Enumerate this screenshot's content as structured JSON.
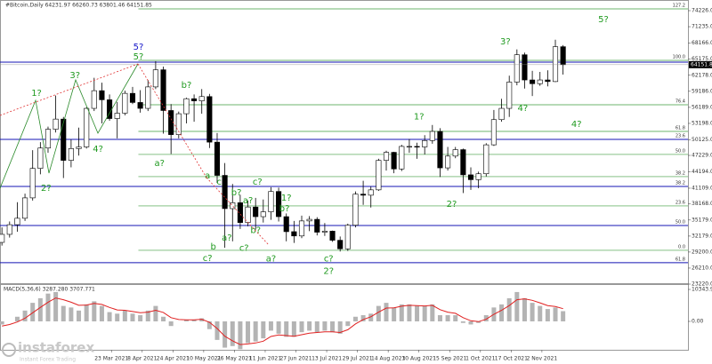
{
  "chart_data": [
    {
      "type": "candlestick",
      "title": "#Bitcoin,Daily  64231.97 66260.73 63801.46 64151.85",
      "x": [
        "2021-01-25",
        "2021-01-29",
        "2021-02-02",
        "2021-02-06",
        "2021-02-10",
        "2021-02-14",
        "2021-02-18",
        "2021-02-22",
        "2021-02-26",
        "2021-03-02",
        "2021-03-06",
        "2021-03-10",
        "2021-03-14",
        "2021-03-18",
        "2021-03-22",
        "2021-03-26",
        "2021-03-30",
        "2021-04-03",
        "2021-04-07",
        "2021-04-11",
        "2021-04-15",
        "2021-04-19",
        "2021-04-23",
        "2021-04-27",
        "2021-05-01",
        "2021-05-05",
        "2021-05-09",
        "2021-05-13",
        "2021-05-17",
        "2021-05-21",
        "2021-05-25",
        "2021-05-29",
        "2021-06-02",
        "2021-06-06",
        "2021-06-10",
        "2021-06-14",
        "2021-06-18",
        "2021-06-22",
        "2021-06-26",
        "2021-06-30",
        "2021-07-04",
        "2021-07-08",
        "2021-07-12",
        "2021-07-16",
        "2021-07-20",
        "2021-07-24",
        "2021-07-28",
        "2021-08-01",
        "2021-08-05",
        "2021-08-09",
        "2021-08-13",
        "2021-08-17",
        "2021-08-21",
        "2021-08-25",
        "2021-08-29",
        "2021-09-02",
        "2021-09-06",
        "2021-09-10",
        "2021-09-14",
        "2021-09-18",
        "2021-09-22",
        "2021-09-26",
        "2021-09-30",
        "2021-10-04",
        "2021-10-08",
        "2021-10-12",
        "2021-10-16",
        "2021-10-20",
        "2021-10-24",
        "2021-10-28",
        "2021-11-01",
        "2021-11-05",
        "2021-11-09",
        "2021-11-13"
      ],
      "open": [
        31000,
        32500,
        34300,
        35500,
        39300,
        44800,
        48600,
        52100,
        54000,
        46300,
        48500,
        48800,
        56000,
        59300,
        57600,
        54100,
        55100,
        58800,
        57100,
        56000,
        60000,
        63200,
        55600,
        51100,
        55000,
        57800,
        57400,
        58200,
        49700,
        43500,
        37300,
        38400,
        34700,
        37600,
        35800,
        36700,
        40500,
        35800,
        33000,
        32200,
        35000,
        35300,
        32900,
        33100,
        31400,
        29800,
        34200,
        40000,
        39800,
        40800,
        46300,
        47800,
        44700,
        48900,
        48900,
        48800,
        50000,
        51700,
        44900,
        47100,
        48300,
        43600,
        42700,
        43800,
        49200,
        53900,
        56000,
        60900,
        66000,
        61300,
        60600,
        61300,
        61000,
        67500
      ],
      "high": [
        33800,
        34900,
        38500,
        40100,
        48200,
        49700,
        52600,
        58400,
        54400,
        50200,
        52400,
        56200,
        61700,
        60800,
        58600,
        57200,
        59300,
        60000,
        59400,
        61300,
        64800,
        63800,
        56800,
        55400,
        58000,
        58600,
        59600,
        58700,
        51400,
        45800,
        41900,
        39900,
        38800,
        39300,
        39000,
        41300,
        41200,
        36400,
        35000,
        36000,
        35900,
        35700,
        34600,
        33200,
        32100,
        34500,
        40500,
        42500,
        41400,
        46600,
        48100,
        47900,
        49200,
        50300,
        49600,
        51000,
        52900,
        52300,
        48800,
        48800,
        48500,
        45000,
        44200,
        49500,
        55700,
        57800,
        62100,
        67000,
        66400,
        63000,
        62800,
        63100,
        68800,
        67800
      ],
      "low": [
        30400,
        31900,
        33000,
        35000,
        38800,
        43700,
        47700,
        51500,
        43000,
        45000,
        47200,
        48500,
        55500,
        53200,
        53700,
        50400,
        54700,
        56800,
        55200,
        55500,
        59600,
        51300,
        47500,
        50400,
        53200,
        53500,
        55000,
        48600,
        42100,
        30000,
        31200,
        33500,
        34000,
        33400,
        34700,
        35200,
        34900,
        31200,
        30900,
        31800,
        33100,
        32300,
        32200,
        31100,
        29300,
        29400,
        33800,
        38000,
        37500,
        40600,
        44400,
        43900,
        44300,
        47700,
        46600,
        47400,
        49400,
        43200,
        44400,
        46700,
        40200,
        40800,
        41100,
        43300,
        49000,
        53500,
        54400,
        60300,
        59700,
        58300,
        60200,
        60100,
        60900,
        62300
      ],
      "close": [
        32500,
        34300,
        35500,
        39300,
        44800,
        48600,
        52100,
        54000,
        46300,
        48500,
        48800,
        56000,
        59300,
        57600,
        54100,
        55100,
        58800,
        57100,
        56000,
        60000,
        63200,
        55600,
        51100,
        55000,
        57800,
        57400,
        58200,
        49700,
        43500,
        37300,
        38400,
        34700,
        37600,
        35800,
        36700,
        40500,
        35800,
        33000,
        32200,
        35000,
        35300,
        32900,
        33100,
        31400,
        29800,
        34200,
        40000,
        39800,
        40800,
        46300,
        47800,
        44700,
        48900,
        48900,
        48800,
        50000,
        51700,
        44900,
        47100,
        48300,
        43600,
        42700,
        43800,
        49200,
        53900,
        56000,
        60900,
        66000,
        61300,
        60600,
        61300,
        61000,
        67500,
        64150
      ],
      "up_color": "#ffffff",
      "down_color": "#000000",
      "xlim": [
        "2021-01-24",
        "2022-01-17"
      ],
      "xticks": [
        {
          "value": "2021-03-23",
          "label": "23 Mar 2021"
        },
        {
          "value": "2021-04-08",
          "label": "8 Apr 2021"
        },
        {
          "value": "2021-04-24",
          "label": "24 Apr 2021"
        },
        {
          "value": "2021-05-10",
          "label": "10 May 2021"
        },
        {
          "value": "2021-05-26",
          "label": "26 May 2021"
        },
        {
          "value": "2021-06-11",
          "label": "11 Jun 2021"
        },
        {
          "value": "2021-06-27",
          "label": "27 Jun 2021"
        },
        {
          "value": "2021-07-13",
          "label": "13 Jul 2021"
        },
        {
          "value": "2021-07-29",
          "label": "29 Jul 2021"
        },
        {
          "value": "2021-08-14",
          "label": "14 Aug 2021"
        },
        {
          "value": "2021-08-30",
          "label": "30 Aug 2021"
        },
        {
          "value": "2021-09-15",
          "label": "15 Sep 2021"
        },
        {
          "value": "2021-10-01",
          "label": "1 Oct 2021"
        },
        {
          "value": "2021-10-17",
          "label": "17 Oct 2021"
        },
        {
          "value": "2021-11-02",
          "label": "2 Nov 2021"
        }
      ],
      "ylim": [
        23220,
        76213
      ],
      "yticks": [
        {
          "value": 74226,
          "label": "74226.00"
        },
        {
          "value": 71235,
          "label": "71235.00"
        },
        {
          "value": 68166,
          "label": "68166.00"
        },
        {
          "value": 65175,
          "label": "65175.00"
        },
        {
          "value": 62178,
          "label": "62178.00"
        },
        {
          "value": 59186,
          "label": "59186.00"
        },
        {
          "value": 56189,
          "label": "56189.00"
        },
        {
          "value": 53198,
          "label": "53198.00"
        },
        {
          "value": 50125,
          "label": "50125.00"
        },
        {
          "value": 47229,
          "label": "47229.00"
        },
        {
          "value": 44194,
          "label": "44194.00"
        },
        {
          "value": 41109,
          "label": "41109.00"
        },
        {
          "value": 38168,
          "label": "38168.00"
        },
        {
          "value": 35179,
          "label": "35179.00"
        },
        {
          "value": 32179,
          "label": "32179.00"
        },
        {
          "value": 29200,
          "label": "29200.00"
        },
        {
          "value": 26210,
          "label": "26210.00"
        },
        {
          "value": 23220,
          "label": "23220.00"
        }
      ],
      "last_price": 64151.85,
      "levels": [
        {
          "label": "127.2",
          "value": 74557,
          "color": "#3c9c3c",
          "from": "2021-04-06"
        },
        {
          "label": "100.0",
          "value": 64955,
          "color": "#3c9c3c",
          "from": "2021-04-06"
        },
        {
          "label": "76.4",
          "value": 56676,
          "color": "#3c9c3c",
          "from": "2021-04-06"
        },
        {
          "label": "61.8",
          "value": 51709,
          "color": "#3c9c3c",
          "from": "2021-04-06"
        },
        {
          "label": "50.0",
          "value": 47405,
          "color": "#3c9c3c",
          "from": "2021-04-06"
        },
        {
          "label": "38.2",
          "value": 43266,
          "color": "#3c9c3c",
          "from": "2021-04-06"
        },
        {
          "label": "23.6",
          "value": 37802,
          "color": "#3c9c3c",
          "from": "2021-04-06"
        },
        {
          "label": "0.0",
          "value": 29524,
          "color": "#3c9c3c",
          "from": "2021-04-06"
        },
        {
          "value": 64624,
          "color": "#1414b4"
        },
        {
          "label": "23.6",
          "value": 50220,
          "color": "#1414b4"
        },
        {
          "label": "38.2",
          "value": 41445,
          "color": "#1414b4"
        },
        {
          "label": "50.0",
          "value": 34160,
          "color": "#1414b4"
        },
        {
          "label": "61.8",
          "value": 27207,
          "color": "#1414b4"
        }
      ],
      "annotations": [
        {
          "text": "1?",
          "x": "2021-02-12",
          "y": 58800,
          "color": "#1f9a1f"
        },
        {
          "text": "2?",
          "x": "2021-02-17",
          "y": 41100,
          "color": "#1f9a1f"
        },
        {
          "text": "3?",
          "x": "2021-03-04",
          "y": 62100,
          "color": "#1f9a1f"
        },
        {
          "text": "4?",
          "x": "2021-03-16",
          "y": 48400,
          "color": "#1f9a1f"
        },
        {
          "text": "5?",
          "x": "2021-04-06",
          "y": 67400,
          "color": "#1414c8"
        },
        {
          "text": "5?",
          "x": "2021-04-06",
          "y": 65600,
          "color": "#1f9a1f"
        },
        {
          "text": "a?",
          "x": "2021-04-17",
          "y": 45750,
          "color": "#1f9a1f"
        },
        {
          "text": "b?",
          "x": "2021-05-01",
          "y": 60300,
          "color": "#1f9a1f"
        },
        {
          "text": "a",
          "x": "2021-05-12",
          "y": 43400,
          "color": "#1f9a1f"
        },
        {
          "text": "c",
          "x": "2021-05-18",
          "y": 42300,
          "color": "#1f9a1f"
        },
        {
          "text": "b?",
          "x": "2021-05-27",
          "y": 40300,
          "color": "#1f9a1f"
        },
        {
          "text": "a?",
          "x": "2021-06-02",
          "y": 38800,
          "color": "#1f9a1f"
        },
        {
          "text": "c?",
          "x": "2021-06-07",
          "y": 42300,
          "color": "#1f9a1f"
        },
        {
          "text": "1?",
          "x": "2021-06-22",
          "y": 39300,
          "color": "#1f9a1f"
        },
        {
          "text": "b?",
          "x": "2021-06-21",
          "y": 37300,
          "color": "#1f9a1f"
        },
        {
          "text": "b?",
          "x": "2021-06-06",
          "y": 33200,
          "color": "#1f9a1f"
        },
        {
          "text": "a?",
          "x": "2021-05-22",
          "y": 31800,
          "color": "#1f9a1f"
        },
        {
          "text": "c?",
          "x": "2021-05-31",
          "y": 29900,
          "color": "#1f9a1f"
        },
        {
          "text": "b",
          "x": "2021-05-15",
          "y": 30200,
          "color": "#1f9a1f"
        },
        {
          "text": "c?",
          "x": "2021-05-12",
          "y": 28000,
          "color": "#1f9a1f"
        },
        {
          "text": "a?",
          "x": "2021-06-14",
          "y": 27900,
          "color": "#1f9a1f"
        },
        {
          "text": "c?",
          "x": "2021-07-14",
          "y": 27900,
          "color": "#1f9a1f"
        },
        {
          "text": "2?",
          "x": "2021-07-14",
          "y": 25600,
          "color": "#1f9a1f"
        },
        {
          "text": "1?",
          "x": "2021-08-30",
          "y": 54400,
          "color": "#1f9a1f"
        },
        {
          "text": "2?",
          "x": "2021-09-16",
          "y": 38100,
          "color": "#1f9a1f"
        },
        {
          "text": "3?",
          "x": "2021-10-14",
          "y": 68400,
          "color": "#1f9a1f"
        },
        {
          "text": "4?",
          "x": "2021-10-23",
          "y": 56000,
          "color": "#1f9a1f"
        },
        {
          "text": "5?",
          "x": "2021-12-04",
          "y": 72600,
          "color": "#1f9a1f"
        },
        {
          "text": "4?",
          "x": "2021-11-20",
          "y": 53000,
          "color": "#1f9a1f"
        }
      ]
    },
    {
      "type": "macd",
      "title": "MACD(5,36,6) 3287.280 3707.771",
      "histogram": [
        -1000,
        0,
        1500,
        3500,
        6000,
        7500,
        9000,
        9500,
        5000,
        4500,
        3500,
        5500,
        6500,
        5000,
        3000,
        2500,
        3500,
        2500,
        2000,
        3500,
        5000,
        1500,
        -1500,
        0,
        500,
        500,
        1000,
        -2500,
        -6000,
        -8500,
        -8000,
        -9000,
        -7000,
        -6500,
        -5500,
        -3000,
        -4000,
        -5000,
        -5000,
        -3500,
        -3000,
        -3500,
        -3000,
        -3500,
        -4000,
        -1500,
        1500,
        2000,
        2500,
        5000,
        6000,
        4500,
        5500,
        5500,
        5000,
        5000,
        5500,
        2000,
        2000,
        2000,
        -500,
        -1000,
        -500,
        2000,
        4500,
        5500,
        7500,
        9500,
        7500,
        6000,
        5000,
        4000,
        4500,
        3300
      ],
      "signal": [
        -1500,
        -1000,
        -200,
        1000,
        2800,
        4500,
        6200,
        7600,
        7000,
        6200,
        5200,
        5300,
        5800,
        5500,
        4500,
        3700,
        3600,
        3200,
        2800,
        3000,
        3600,
        2900,
        1200,
        600,
        500,
        500,
        700,
        -300,
        -2300,
        -4800,
        -6300,
        -7500,
        -7300,
        -7000,
        -6400,
        -4900,
        -4400,
        -4600,
        -4800,
        -4300,
        -3800,
        -3600,
        -3400,
        -3400,
        -3600,
        -2700,
        -800,
        600,
        1500,
        3000,
        4300,
        4400,
        4900,
        5200,
        5100,
        5000,
        5200,
        3800,
        3000,
        2600,
        1200,
        200,
        -100,
        700,
        2300,
        3600,
        5100,
        7000,
        7300,
        6800,
        6000,
        5100,
        4800,
        4100
      ],
      "histogram_color": "#b4b4b4",
      "signal_color": "#e02020",
      "ylim": [
        -9200,
        12070
      ],
      "yticks": [
        10343.91,
        {
          "value": 0,
          "label": "0.00"
        }
      ]
    }
  ],
  "watermark": {
    "brand": "instaforex",
    "tagline": "Instant Forex Trading"
  }
}
